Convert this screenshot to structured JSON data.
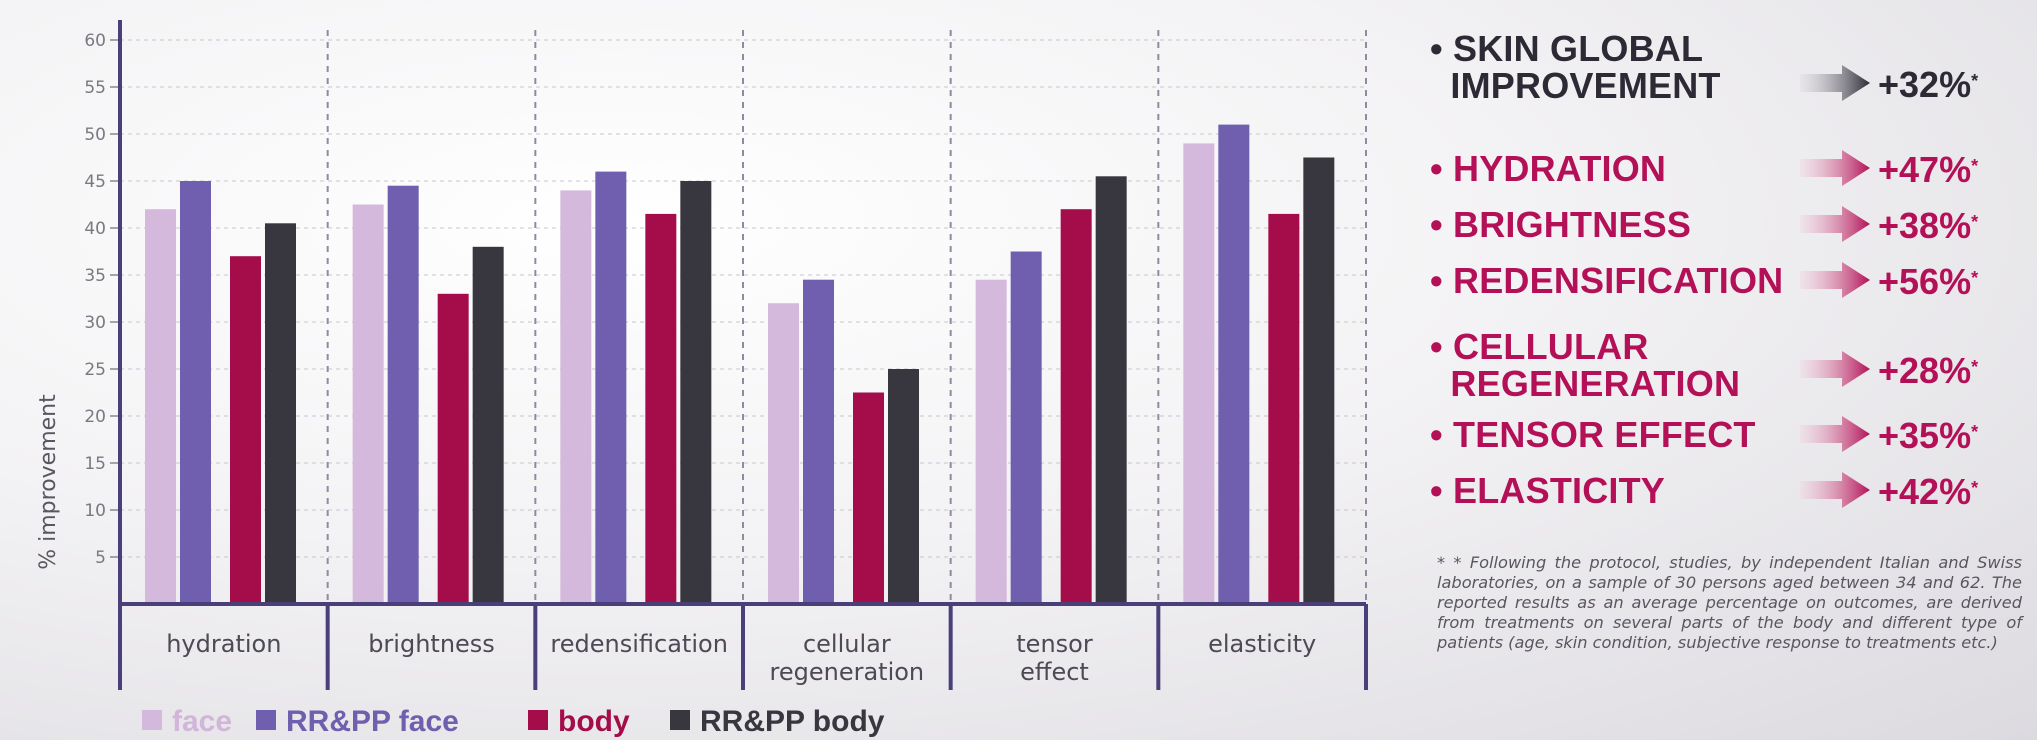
{
  "chart_data": {
    "type": "bar",
    "ylabel": "% improvement",
    "ylim": [
      0,
      60
    ],
    "yticks": [
      5,
      10,
      15,
      20,
      25,
      30,
      35,
      40,
      45,
      50,
      55,
      60
    ],
    "categories": [
      "hydration",
      "brightness",
      "redensification",
      "cellular\nregeneration",
      "tensor\neffect",
      "elasticity"
    ],
    "series": [
      {
        "name": "face",
        "color": "#d4b9dc",
        "values": [
          42,
          42.5,
          44,
          32,
          34.5,
          49
        ]
      },
      {
        "name": "RR&PP face",
        "color": "#6f5fae",
        "values": [
          45,
          44.5,
          46,
          34.5,
          37.5,
          51
        ]
      },
      {
        "name": "body",
        "color": "#a50d4a",
        "values": [
          37,
          33,
          41.5,
          22.5,
          42,
          41.5
        ]
      },
      {
        "name": "RR&PP body",
        "color": "#38363f",
        "values": [
          40.5,
          38,
          45,
          25,
          45.5,
          47.5
        ]
      }
    ],
    "legend_position": "bottom",
    "grid": "dashed"
  },
  "results": [
    {
      "label": "• SKIN GLOBAL\nIMPROVEMENT",
      "value": "+32%",
      "style": "dark"
    },
    {
      "label": "• HYDRATION",
      "value": "+47%",
      "style": "pink"
    },
    {
      "label": "• BRIGHTNESS",
      "value": "+38%",
      "style": "pink"
    },
    {
      "label": "• REDENSIFICATION",
      "value": "+56%",
      "style": "pink"
    },
    {
      "label": "• CELLULAR\nREGENERATION",
      "value": "+28%",
      "style": "pink"
    },
    {
      "label": "• TENSOR EFFECT",
      "value": "+35%",
      "style": "pink"
    },
    {
      "label": "• ELASTICITY",
      "value": "+42%",
      "style": "pink"
    }
  ],
  "value_marker": "*",
  "footnote": "* * Following the protocol, studies, by independent Italian and Swiss laboratories, on a sample of 30 persons aged between 34 and 62.  The reported results as an average percentage on outcomes, are derived from treatments on several parts of the body and different type of patients (age, skin condition, subjective response to treatments etc.)",
  "colors": {
    "dark_text": "#2d2a35",
    "accent": "#b31057",
    "axis": "#4a3f78"
  }
}
